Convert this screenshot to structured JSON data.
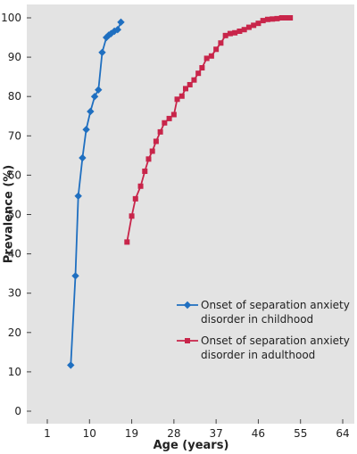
{
  "chart_data": {
    "type": "line",
    "xlabel": "Age (years)",
    "ylabel": "Prevalence (%)",
    "xlim": [
      1,
      64
    ],
    "ylim": [
      0,
      100
    ],
    "x_ticks": [
      1,
      10,
      19,
      28,
      37,
      46,
      55,
      64
    ],
    "y_ticks": [
      0,
      10,
      20,
      30,
      40,
      50,
      60,
      70,
      80,
      90,
      100
    ],
    "grid": false,
    "legend_position": "lower-right",
    "background": "#e3e3e3",
    "series": [
      {
        "name": "Onset of separation anxiety disorder in childhood",
        "legend_lines": [
          "Onset of separation anxiety",
          "disorder in childhood"
        ],
        "color": "#1f6fc0",
        "marker": "diamond",
        "points": [
          [
            6,
            11.7
          ],
          [
            7,
            34.4
          ],
          [
            7.6,
            54.7
          ],
          [
            8.5,
            64.4
          ],
          [
            9.3,
            71.6
          ],
          [
            10.2,
            76.2
          ],
          [
            11.1,
            80
          ],
          [
            11.9,
            81.7
          ],
          [
            12.7,
            91.2
          ],
          [
            13.6,
            95
          ],
          [
            14.1,
            95.6
          ],
          [
            14.6,
            96
          ],
          [
            15.3,
            96.6
          ],
          [
            16,
            97
          ],
          [
            16.7,
            98.9
          ]
        ]
      },
      {
        "name": "Onset of separation anxiety disorder in adulthood",
        "legend_lines": [
          "Onset of separation anxiety",
          "disorder in adulthood"
        ],
        "color": "#c8254a",
        "marker": "square",
        "points": [
          [
            18,
            43
          ],
          [
            19,
            49.6
          ],
          [
            19.8,
            54
          ],
          [
            20.9,
            57.2
          ],
          [
            21.8,
            61
          ],
          [
            22.6,
            64.1
          ],
          [
            23.4,
            66.1
          ],
          [
            24.2,
            68.6
          ],
          [
            25.1,
            71
          ],
          [
            26,
            73.3
          ],
          [
            27,
            74.4
          ],
          [
            28,
            75.4
          ],
          [
            28.7,
            79.3
          ],
          [
            29.7,
            80.1
          ],
          [
            30.5,
            82
          ],
          [
            31.4,
            83
          ],
          [
            32.3,
            84.2
          ],
          [
            33.2,
            85.9
          ],
          [
            34,
            87.3
          ],
          [
            35,
            89.7
          ],
          [
            36,
            90.3
          ],
          [
            37,
            92
          ],
          [
            38,
            93.6
          ],
          [
            39,
            95.5
          ],
          [
            40,
            96
          ],
          [
            41,
            96.2
          ],
          [
            42,
            96.6
          ],
          [
            43,
            97
          ],
          [
            44,
            97.6
          ],
          [
            45,
            98.1
          ],
          [
            46,
            98.6
          ],
          [
            47,
            99.3
          ],
          [
            48,
            99.6
          ],
          [
            49,
            99.7
          ],
          [
            50,
            99.8
          ],
          [
            51,
            100
          ],
          [
            52,
            100
          ],
          [
            52.8,
            100
          ]
        ]
      }
    ]
  }
}
